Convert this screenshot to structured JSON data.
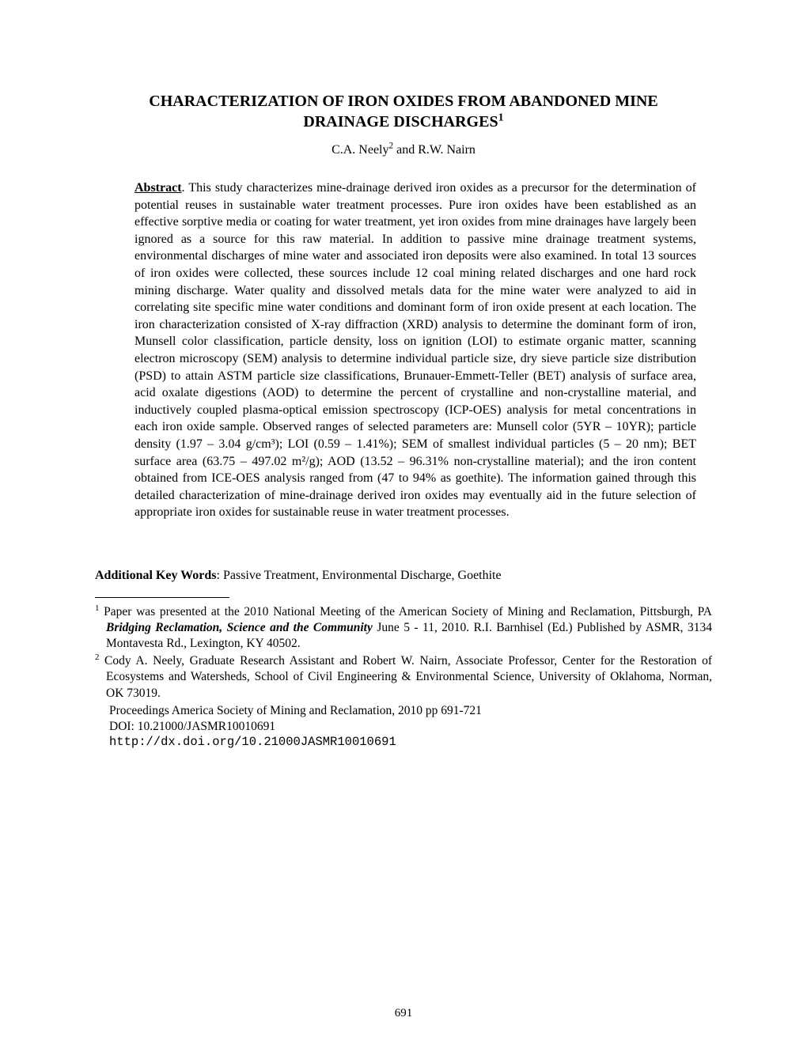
{
  "title_line1": "CHARACTERIZATION OF IRON OXIDES FROM ABANDONED MINE",
  "title_line2": "DRAINAGE DISCHARGES",
  "title_sup": "1",
  "authors_prefix": "C.A. Neely",
  "authors_sup": "2",
  "authors_suffix": " and R.W. Nairn",
  "abstract_label": "Abstract",
  "abstract_text": ". This study characterizes mine-drainage derived iron oxides as a precursor for the determination of potential reuses in sustainable water treatment processes.  Pure iron oxides have been established as an effective sorptive media or coating for water treatment, yet iron oxides from mine drainages have largely been ignored as a source for this raw material.  In addition to passive mine drainage treatment systems, environmental discharges of mine water and associated iron deposits were also examined.  In total 13 sources of iron oxides were collected, these sources include 12 coal mining related discharges and one hard rock mining discharge.  Water quality and dissolved metals data for the mine water were analyzed to aid in correlating site specific mine water conditions and dominant form of iron oxide present at each location.  The iron characterization consisted of X-ray diffraction (XRD) analysis to determine the dominant form of iron, Munsell color classification, particle density, loss on ignition (LOI) to estimate organic matter, scanning electron microscopy (SEM) analysis to determine individual particle size, dry sieve particle size distribution (PSD) to attain ASTM particle size classifications, Brunauer-Emmett-Teller (BET) analysis of surface area, acid oxalate digestions (AOD) to determine the percent of crystalline and non-crystalline material, and inductively coupled plasma-optical emission spectroscopy (ICP-OES) analysis for metal concentrations in each iron oxide sample.  Observed ranges of selected parameters are:  Munsell color (5YR – 10YR); particle density (1.97 – 3.04 g/cm³); LOI (0.59 – 1.41%); SEM of smallest individual particles (5 – 20 nm); BET surface area (63.75 – 497.02 m²/g); AOD (13.52 – 96.31% non-crystalline material); and the iron content obtained from ICE-OES analysis ranged from (47 to 94% as goethite).  The information gained through this detailed characterization of mine-drainage derived iron oxides may eventually aid in the future selection of appropriate iron oxides for sustainable reuse in water treatment processes.",
  "keywords_label": "Additional Key Words",
  "keywords_text": ": Passive Treatment, Environmental Discharge, Goethite",
  "footnote1_sup": "1",
  "footnote1_pre": " Paper was presented at the 2010 National Meeting of the American Society of Mining and Reclamation, Pittsburgh, PA ",
  "footnote1_italic": "Bridging Reclamation, Science and the Community",
  "footnote1_post": " June 5 - 11, 2010.  R.I. Barnhisel (Ed.) Published by ASMR, 3134 Montavesta Rd., Lexington, KY 40502.",
  "footnote2_sup": "2",
  "footnote2_text": " Cody A. Neely, Graduate Research Assistant and Robert W. Nairn, Associate Professor, Center for the Restoration of Ecosystems and Watersheds, School of Civil Engineering & Environmental Science, University of Oklahoma, Norman, OK 73019.",
  "proceedings": "Proceedings America Society of Mining and Reclamation, 2010 pp 691-721",
  "doi": "DOI: 10.21000/JASMR10010691",
  "doi_link": "http://dx.doi.org/10.21000JASMR10010691",
  "page_number": "691"
}
